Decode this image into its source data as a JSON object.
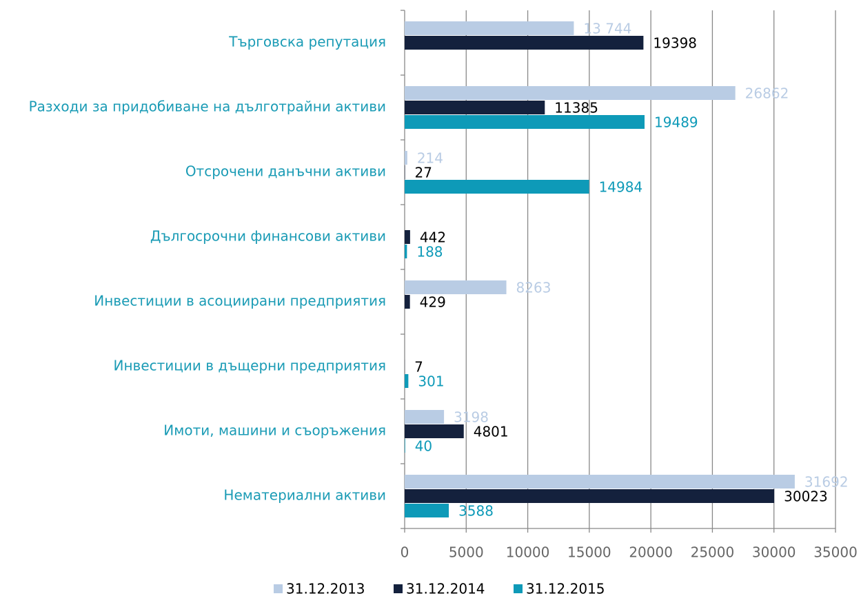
{
  "chart_data": {
    "type": "barh",
    "categories": [
      "Търговска репутация",
      "Разходи за придобиване на дълготрайни активи",
      "Отсрочени данъчни активи",
      "Дългосрочни финансови активи",
      "Инвестиции в асоциирани предприятия",
      "Инвестиции в дъщерни предприятия",
      "Имоти, машини и съоръжения",
      "Нематериални активи"
    ],
    "series": [
      {
        "name": "31.12.2013",
        "color": "#b9cce4",
        "label_color": "#b9cce4",
        "values": [
          13744,
          26862,
          214,
          null,
          8263,
          null,
          3198,
          31692
        ],
        "value_labels": [
          "13 744",
          "26862",
          "214",
          null,
          "8263",
          null,
          "3198",
          "31692"
        ]
      },
      {
        "name": "31.12.2014",
        "color": "#14213d",
        "label_color": "#000000",
        "values": [
          19398,
          11385,
          27,
          442,
          429,
          7,
          4801,
          30023
        ]
      },
      {
        "name": "31.12.2015",
        "color": "#0e9ab8",
        "label_color": "#0e9ab8",
        "values": [
          null,
          19489,
          14984,
          188,
          null,
          301,
          40,
          3588
        ]
      }
    ],
    "xlim": [
      0,
      35000
    ],
    "xticks": [
      0,
      5000,
      10000,
      15000,
      20000,
      25000,
      30000,
      35000
    ],
    "grid": true,
    "legend": "bottom"
  }
}
